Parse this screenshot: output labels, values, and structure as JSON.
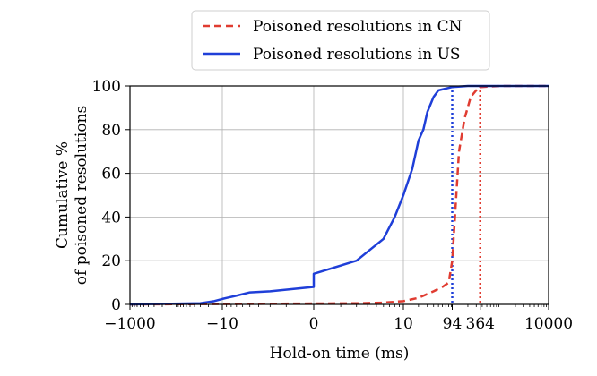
{
  "chart_data": {
    "type": "line",
    "title": "",
    "xlabel": "Hold-on time (ms)",
    "ylabel_lines": [
      "Cumulative %",
      "of poisoned resolutions"
    ],
    "x_scale": "symlog",
    "xlim": [
      -1000,
      10000
    ],
    "ylim": [
      0,
      100
    ],
    "x_tick_values": [
      -1000,
      -10,
      0,
      10,
      94,
      364,
      10000
    ],
    "x_tick_labels": [
      "−1000",
      "−10",
      "0",
      "10",
      "94",
      "364",
      "10000"
    ],
    "y_tick_values": [
      0,
      20,
      40,
      60,
      80,
      100
    ],
    "y_tick_labels": [
      "0",
      "20",
      "40",
      "60",
      "80",
      "100"
    ],
    "grid": true,
    "legend_position": "top (outside plot)",
    "series": [
      {
        "name": "Poisoned resolutions in CN",
        "color": "#e03c31",
        "style": "dashed",
        "points": [
          [
            -1000,
            0
          ],
          [
            -10,
            0.2
          ],
          [
            0,
            0.4
          ],
          [
            3,
            0.5
          ],
          [
            6,
            0.8
          ],
          [
            10,
            1.5
          ],
          [
            20,
            3
          ],
          [
            40,
            6
          ],
          [
            60,
            8
          ],
          [
            80,
            10
          ],
          [
            94,
            20
          ],
          [
            130,
            70
          ],
          [
            170,
            85
          ],
          [
            230,
            95
          ],
          [
            300,
            98
          ],
          [
            364,
            99.5
          ],
          [
            1000,
            100
          ],
          [
            10000,
            100
          ]
        ]
      },
      {
        "name": "Poisoned resolutions in US",
        "color": "#1f3fd8",
        "style": "solid",
        "points": [
          [
            -1000,
            0
          ],
          [
            -30,
            0.5
          ],
          [
            -15,
            1.5
          ],
          [
            -10,
            2.5
          ],
          [
            -7,
            4
          ],
          [
            -5,
            5.5
          ],
          [
            -3,
            6
          ],
          [
            -1,
            8
          ],
          [
            0,
            10
          ],
          [
            1,
            14
          ],
          [
            3,
            20
          ],
          [
            6,
            30
          ],
          [
            8,
            40
          ],
          [
            10,
            50
          ],
          [
            15,
            62
          ],
          [
            20,
            75
          ],
          [
            25,
            80
          ],
          [
            30,
            88
          ],
          [
            40,
            95
          ],
          [
            50,
            98
          ],
          [
            94,
            99.5
          ],
          [
            200,
            100
          ],
          [
            10000,
            100
          ]
        ]
      }
    ],
    "vertical_markers": [
      {
        "x": 94,
        "color": "#1f3fd8",
        "style": "dotted"
      },
      {
        "x": 364,
        "color": "#e03c31",
        "style": "dotted"
      }
    ]
  }
}
